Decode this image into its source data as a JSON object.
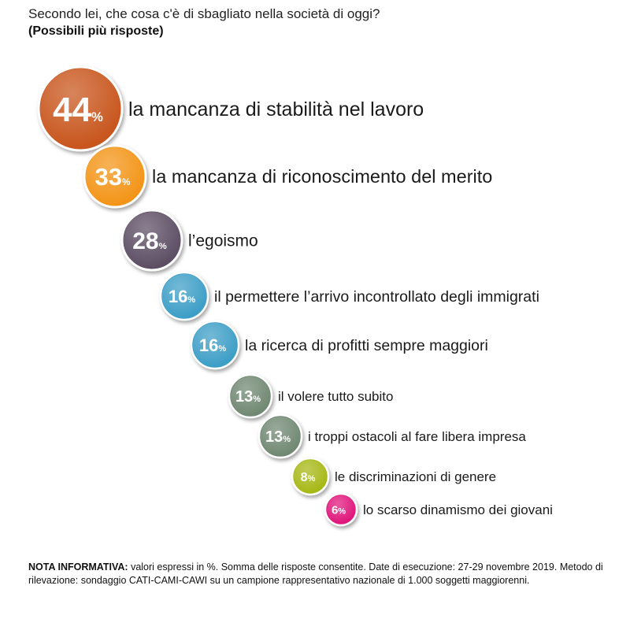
{
  "header": {
    "title": "Secondo lei, che cosa c'è di sbagliato nella società di oggi?",
    "subtitle": "(Possibili più risposte)"
  },
  "chart_data": {
    "type": "bubble",
    "unit": "%",
    "items": [
      {
        "label": "la mancanza di stabilità nel lavoro",
        "value": 44,
        "color": "#c8541c"
      },
      {
        "label": "la mancanza di riconoscimento del merito",
        "value": 33,
        "color": "#f39419"
      },
      {
        "label": "l’egoismo",
        "value": 28,
        "color": "#5b4e63"
      },
      {
        "label": "il permettere l’arrivo incontrollato degli immigrati",
        "value": 16,
        "color": "#3e9ec6"
      },
      {
        "label": "la ricerca di profitti sempre maggiori",
        "value": 16,
        "color": "#3e9ec6"
      },
      {
        "label": "il volere tutto subito",
        "value": 13,
        "color": "#6f8872"
      },
      {
        "label": "i troppi ostacoli al fare libera impresa",
        "value": 13,
        "color": "#6f8872"
      },
      {
        "label": "le discriminazioni di genere",
        "value": 8,
        "color": "#a6b818"
      },
      {
        "label": "lo scarso dinamismo dei giovani",
        "value": 6,
        "color": "#e0197c"
      }
    ]
  },
  "note": {
    "label": "NOTA INFORMATIVA:",
    "text": " valori espressi in %. Somma delle risposte consentite. Date di esecuzione: 27-29 novembre 2019. Metodo di rilevazione: sondaggio CATI-CAMI-CAWI su un campione rappresentativo nazionale di 1.000 soggetti maggiorenni."
  }
}
